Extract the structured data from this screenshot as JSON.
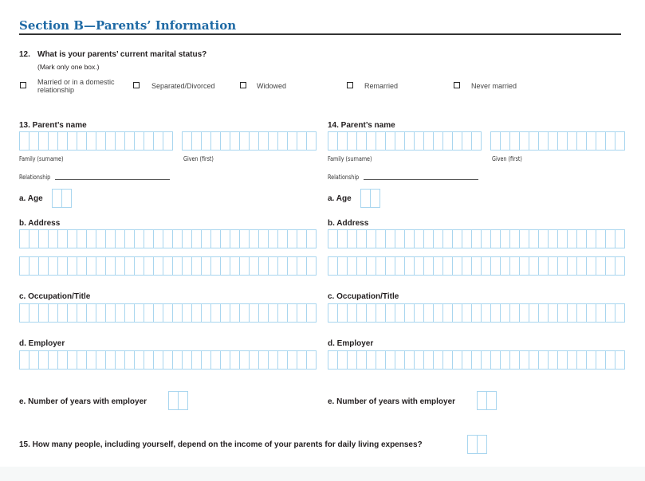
{
  "section_title": "Section B—Parents’ Information",
  "q12": {
    "number": "12.",
    "question": "What is your parents’ current marital status?",
    "instruction": "(Mark only one box.)",
    "options": [
      {
        "line1": "Married or in a domestic",
        "line2": "relationship",
        "checked": false
      },
      {
        "label": "Separated/Divorced",
        "checked": false
      },
      {
        "label": "Widowed",
        "checked": false
      },
      {
        "label": "Remarried",
        "checked": false
      },
      {
        "label": "Never married",
        "checked": false
      }
    ]
  },
  "parents": [
    {
      "heading": "13. Parent’s name",
      "family_label": "Family (surname)",
      "given_label": "Given (first)",
      "relationship_label": "Relationship",
      "age_label": "a. Age",
      "address_label": "b. Address",
      "occupation_label": "c. Occupation/Title",
      "employer_label": "d. Employer",
      "years_label": "e. Number of years with employer"
    },
    {
      "heading": "14. Parent’s name",
      "family_label": "Family (surname)",
      "given_label": "Given (first)",
      "relationship_label": "Relationship",
      "age_label": "a. Age",
      "address_label": "b. Address",
      "occupation_label": "c. Occupation/Title",
      "employer_label": "d. Employer",
      "years_label": "e. Number of years with employer"
    }
  ],
  "q15": {
    "question": "15. How many people, including yourself, depend on the income of your parents for daily living expenses?"
  },
  "colors": {
    "heading": "#1f6aa5",
    "box_border": "#a9d6ef"
  }
}
